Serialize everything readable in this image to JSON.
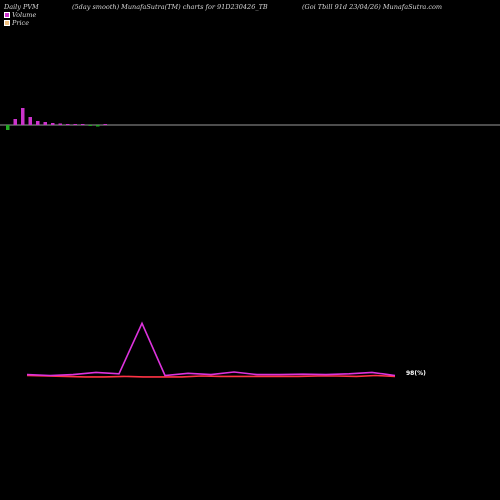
{
  "header": {
    "left": "Daily PVM",
    "middle": "(5day smooth) MunafaSutra(TM) charts for 91D230426_TB",
    "right": "(Goi  Tbill 91d 23/04/26) MunafaSutra.com"
  },
  "legend": [
    {
      "label": "Volume",
      "color": "#cc33cc"
    },
    {
      "label": "Price",
      "color": "#f0c080"
    }
  ],
  "chart_data": {
    "type": "line",
    "title": "",
    "price_label": "98(%)",
    "volume_bars": {
      "color_up": "#cc33cc",
      "color_down": "#22aa22",
      "values": [
        -5,
        6,
        17,
        8,
        4,
        3,
        2,
        1.5,
        1,
        0.8,
        0.6,
        -1,
        -1.5,
        0.8
      ]
    },
    "series": [
      {
        "color": "#ff3344",
        "values": [
          98.0,
          97.9,
          97.8,
          97.7,
          97.7,
          97.8,
          97.7,
          97.7,
          97.7,
          97.9,
          97.8,
          97.8,
          97.8,
          97.8,
          97.8,
          97.9,
          97.9,
          97.8,
          98.0,
          97.8
        ]
      },
      {
        "color": "#dd33dd",
        "values": [
          98.2,
          98.0,
          98.2,
          98.7,
          98.4,
          109.7,
          98.0,
          98.5,
          98.2,
          98.8,
          98.2,
          98.2,
          98.3,
          98.2,
          98.4,
          98.7,
          98.0
        ]
      }
    ]
  }
}
